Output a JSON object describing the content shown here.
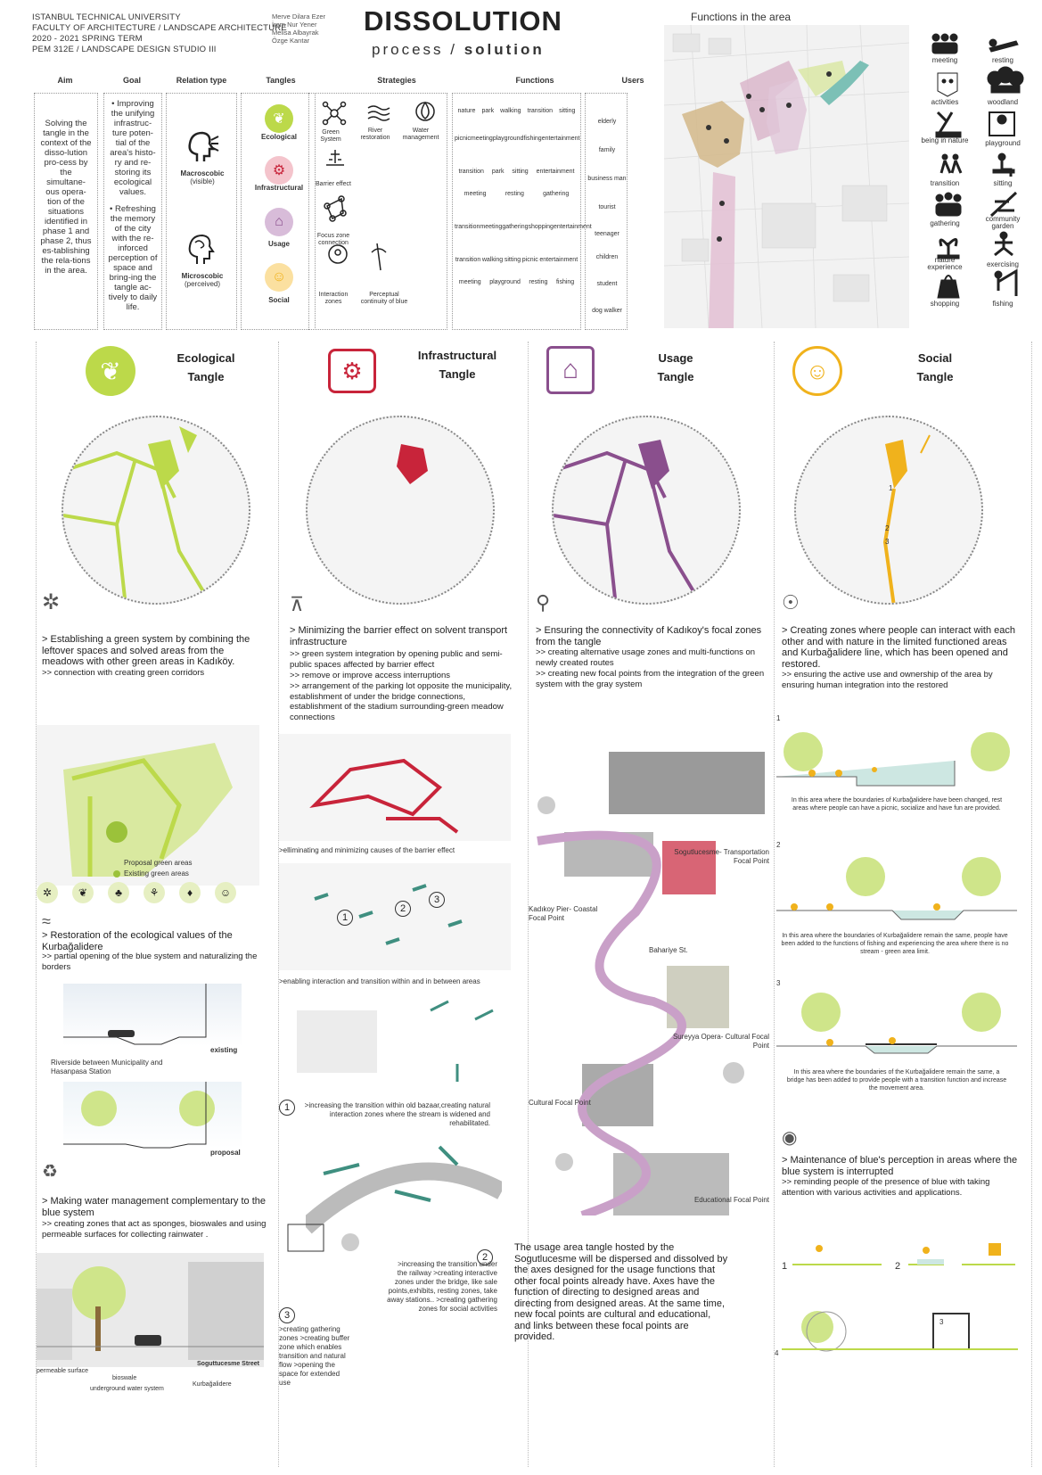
{
  "header": {
    "university_lines": [
      "ISTANBUL TECHNICAL UNIVERSITY",
      "FACULTY OF ARCHITECTURE / LANDSCAPE ARCHITECTURE",
      "2020 - 2021 SPRING TERM",
      "PEM 312E / LANDSCAPE DESIGN STUDIO III"
    ],
    "names": [
      "Merve Dilara Ezer",
      "İrem Nur Yener",
      "Melisa Albayrak",
      "Özge Kantar"
    ],
    "title": "DISSOLUTION",
    "subtitle_a": "process",
    "subtitle_sep": " / ",
    "subtitle_b": "solution"
  },
  "functions_area_title": "Functions in the area",
  "table": {
    "aim_head": "Aim",
    "goal_head": "Goal",
    "relation_head": "Relation type",
    "tangles_head": "Tangles",
    "strategies_head": "Strategies",
    "functions_head": "Functions",
    "users_head": "Users",
    "aim_text": "Solving the tangle in the context of the disso-lution pro-cess by the simultane-ous opera-tion of the situations identified in phase 1 and phase 2, thus es-tablishing the rela-tions in the area.",
    "goal_1": "• Improving the unifying infrastruc-ture poten-tial of the area's histo-ry and re-storing its ecological values.",
    "goal_2": "• Refreshing the memory of the city with the re-inforced perception of space and bring-ing the tangle ac-tively to daily life.",
    "relation_macro": "Macroscobic",
    "relation_macro_sub": "(visible)",
    "relation_micro": "Microscobic",
    "relation_micro_sub": "(perceived)",
    "tangles": [
      "Ecological",
      "Infrastructural",
      "Usage",
      "Social"
    ],
    "strategies": {
      "green_system": "Green System",
      "river_restoration": "River restoration",
      "water_management": "Water management",
      "barrier_effect": "Barrier effect",
      "focus_zone": "Focus zone connection",
      "interaction_zones": "Interaction zones",
      "perceptual_continuity": "Perceptual continuity of blue"
    },
    "functions_rows": [
      [
        "nature",
        "park",
        "walking",
        "transition",
        "sitting"
      ],
      [
        "picnic",
        "meeting",
        "playground",
        "fishing",
        "entertainment"
      ],
      [
        "transition",
        "park",
        "sitting",
        "entertainment"
      ],
      [
        "meeting",
        "resting",
        "gathering"
      ],
      [
        "transition",
        "meeting",
        "gathering",
        "shopping",
        "entertainment"
      ],
      [
        "transition",
        "walking",
        "sitting",
        "picnic",
        "entertainment"
      ],
      [
        "meeting",
        "playground",
        "resting",
        "fishing"
      ]
    ],
    "users": [
      "elderly",
      "family",
      "business man",
      "tourist",
      "teenager",
      "children",
      "student",
      "dog walker"
    ]
  },
  "functions_legend": [
    [
      "meeting",
      "resting"
    ],
    [
      "activities",
      "woodland"
    ],
    [
      "being in nature",
      "playground"
    ],
    [
      "transition",
      "sitting"
    ],
    [
      "gathering",
      "community garden"
    ],
    [
      "nature experience",
      "exercising"
    ],
    [
      "shopping",
      "fishing"
    ]
  ],
  "colors": {
    "ecological": "#bcd94a",
    "infrastructural": "#c8243a",
    "usage": "#8a4f8d",
    "social": "#f0b21c",
    "blue": "#5aa89a"
  },
  "ecological": {
    "title_1": "Ecological",
    "title_2": "Tangle",
    "p1": "> Establishing a green system by combining the leftover spaces and solved areas from the meadows with other green areas in Kadıköy.",
    "p1_sub": ">> connection with creating green corridors",
    "legend_proposal": "Proposal green areas",
    "legend_existing": "Existing green areas",
    "p2": "> Restoration of the ecological values of the Kurbağalidere",
    "p2_sub": ">> partial opening of the blue system and naturalizing the borders",
    "existing": "existing",
    "riverside": "Riverside between Municipality and Hasanpasa Station",
    "proposal": "proposal",
    "p3": "> Making water management complementary to the blue system",
    "p3_sub": ">> creating zones that act as sponges, bioswales and using permeable surfaces for collecting rainwater .",
    "permeable": "permeable surface",
    "bioswale": "bioswale",
    "underground": "underground water system",
    "kurbagalidere": "Kurbağalidere",
    "street": "Soguttucesme Street"
  },
  "infrastructural": {
    "title_1": "Infrastructural",
    "title_2": "Tangle",
    "p1": "> Minimizing the barrier effect on solvent transport infrastructure",
    "p1_sub1": ">> green system integration by opening public and semi-public spaces affected by barrier effect",
    "p1_sub2": ">> remove or improve access interruptions",
    "p1_sub3": ">> arrangement of the parking lot opposite the municipality, establishment of under the bridge connections, establishment of the stadium surrounding-green meadow connections",
    "cap1": ">elliminating and minimizing causes of the barrier effect",
    "cap2": ">enabling interaction and transition within and in between areas",
    "n1": "1",
    "n2": "2",
    "n3": "3",
    "note1": ">increasing the transition within old bazaar,creating natural interaction zones where the stream is widened and rehabilitated.",
    "note2": ">increasing the transition under the railway >creating interactive zones under the bridge, like sale points,exhibits, resting zones, take away stations.. >creating gathering zones for social activities",
    "note3": ">creating gathering zones >creating buffer zone which enables transition and natural flow >opening the space for extended use"
  },
  "usage": {
    "title_1": "Usage",
    "title_2": "Tangle",
    "p1": "> Ensuring the connectivity of Kadıkoy's focal zones from the tangle",
    "p1_sub1": ">> creating alternative usage zones and multi-functions on newly created routes",
    "p1_sub2": ">> creating new focal points from the integration of the green system with the gray system",
    "fp1": "Sogutlucesme- Transportation Focal Point",
    "fp2": "Kadıkoy Pier- Coastal Focal Point",
    "fp3": "Bahariye St.",
    "fp4": "Sureyya Opera- Cultural Focal Point",
    "fp5": "Cultural Focal Point",
    "fp6": "Educational Focal Point",
    "summary": "The usage area tangle hosted by the Sogutlucesme will be dispersed and dissolved by the axes designed for the usage functions that other focal points already have. Axes have the function of directing to designed areas and directing from designed areas. At the same time, new focal points are cultural and educational, and links between these focal points are provided."
  },
  "social": {
    "title_1": "Social",
    "title_2": "Tangle",
    "p1": "> Creating zones where people can interact with each other and with nature in the limited functioned areas and Kurbağalidere line, which has been opened and restored.",
    "p1_sub": ">> ensuring the active use and ownership of the area by ensuring human integration into the restored",
    "s1_num": "1",
    "s1_txt": "In this area where the boundaries of Kurbağalidere have been changed, rest areas where people can have a picnic, socialize and have fun are provided.",
    "s2_num": "2",
    "s2_txt": "In this area where the boundaries of Kurbağalidere remain the same, people have been added to the functions of fishing and experiencing the area where there is no stream - green area limit.",
    "s3_num": "3",
    "s3_txt": "In this area where the boundaries of the Kurbağalidere remain the same, a bridge has been added to provide people with a transition function and increase the movement area.",
    "p2": "> Maintenance of blue's perception in areas where the blue system is interrupted",
    "p2_sub": ">> reminding people of the presence of blue with taking attention with various activities and applications.",
    "m1": "1",
    "m2": "2",
    "m3": "3",
    "m4": "4",
    "map1": "1",
    "map2": "2",
    "map3": "3"
  }
}
